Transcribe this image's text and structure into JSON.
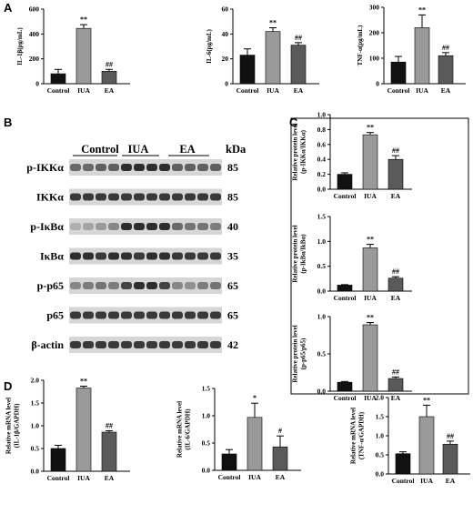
{
  "panels": {
    "A": "A",
    "B": "B",
    "C": "C",
    "D": "D"
  },
  "blot": {
    "groups": [
      "Control",
      "IUA",
      "EA"
    ],
    "kda_header": "kDa",
    "rows": [
      {
        "label": "p-IKKα",
        "kda": "85"
      },
      {
        "label": "IKKα",
        "kda": "85"
      },
      {
        "label": "p-IκBα",
        "kda": "40"
      },
      {
        "label": "IκBα",
        "kda": "35"
      },
      {
        "label": "p-p65",
        "kda": "65"
      },
      {
        "label": "p65",
        "kda": "65"
      },
      {
        "label": "β-actin",
        "kda": "42"
      }
    ]
  },
  "chart_data": [
    {
      "id": "A1",
      "type": "bar",
      "categories": [
        "Control",
        "IUA",
        "EA"
      ],
      "values": [
        80,
        445,
        100
      ],
      "errors": [
        35,
        30,
        15
      ],
      "ylabel": "IL-1β(pg/mL)",
      "ylim": [
        0,
        600
      ],
      "yticks": [
        0,
        200,
        400,
        600
      ],
      "annotations": [
        "",
        "**",
        "##"
      ],
      "colors": [
        "#111111",
        "#9a9a9a",
        "#5a5a5a"
      ]
    },
    {
      "id": "A2",
      "type": "bar",
      "categories": [
        "Control",
        "IUA",
        "EA"
      ],
      "values": [
        23,
        42,
        31
      ],
      "errors": [
        5,
        3,
        2
      ],
      "ylabel": "IL-6(pg/mL)",
      "ylim": [
        0,
        60
      ],
      "yticks": [
        0,
        20,
        40,
        60
      ],
      "annotations": [
        "",
        "**",
        "##"
      ],
      "colors": [
        "#111111",
        "#9a9a9a",
        "#5a5a5a"
      ]
    },
    {
      "id": "A3",
      "type": "bar",
      "categories": [
        "Control",
        "IUA",
        "EA"
      ],
      "values": [
        85,
        220,
        110
      ],
      "errors": [
        22,
        50,
        12
      ],
      "ylabel": "TNF-α(pg/mL)",
      "ylim": [
        0,
        300
      ],
      "yticks": [
        0,
        100,
        200,
        300
      ],
      "annotations": [
        "",
        "**",
        "##"
      ],
      "colors": [
        "#111111",
        "#9a9a9a",
        "#5a5a5a"
      ]
    },
    {
      "id": "C1",
      "type": "bar",
      "categories": [
        "Control",
        "IUA",
        "EA"
      ],
      "values": [
        0.2,
        0.73,
        0.4
      ],
      "errors": [
        0.02,
        0.03,
        0.05
      ],
      "ylabel": "Relative protein level|(p-IKKα/IKKα)",
      "ylim": [
        0,
        1.0
      ],
      "yticks": [
        "0.0",
        "0.2",
        "0.4",
        "0.6",
        "0.8",
        "1.0"
      ],
      "annotations": [
        "",
        "**",
        "##"
      ],
      "colors": [
        "#111111",
        "#9a9a9a",
        "#5a5a5a"
      ]
    },
    {
      "id": "C2",
      "type": "bar",
      "categories": [
        "Control",
        "IUA",
        "EA"
      ],
      "values": [
        0.12,
        0.87,
        0.26
      ],
      "errors": [
        0.01,
        0.07,
        0.03
      ],
      "ylabel": "Relative protein level|(p-IkBα/IkBα)",
      "ylim": [
        0,
        1.5
      ],
      "yticks": [
        "0.0",
        "0.5",
        "1.0",
        "1.5"
      ],
      "annotations": [
        "",
        "**",
        "##"
      ],
      "colors": [
        "#111111",
        "#9a9a9a",
        "#5a5a5a"
      ]
    },
    {
      "id": "C3",
      "type": "bar",
      "categories": [
        "Control",
        "IUA",
        "EA"
      ],
      "values": [
        0.12,
        0.89,
        0.17
      ],
      "errors": [
        0.01,
        0.03,
        0.02
      ],
      "ylabel": "Relative protein level|(p-p65/p65)",
      "ylim": [
        0,
        1.0
      ],
      "yticks": [
        "0.0",
        "0.5",
        "1.0"
      ],
      "annotations": [
        "",
        "**",
        "##"
      ],
      "colors": [
        "#111111",
        "#9a9a9a",
        "#5a5a5a"
      ]
    },
    {
      "id": "D1",
      "type": "bar",
      "categories": [
        "Control",
        "IUA",
        "EA"
      ],
      "values": [
        0.5,
        1.83,
        0.86
      ],
      "errors": [
        0.07,
        0.04,
        0.03
      ],
      "ylabel": "Relative mRNA level|(IL-1β/GAPDH)",
      "ylim": [
        0,
        2.0
      ],
      "yticks": [
        "0.0",
        "0.5",
        "1.0",
        "1.5",
        "2.0"
      ],
      "annotations": [
        "",
        "**",
        "##"
      ],
      "colors": [
        "#111111",
        "#9a9a9a",
        "#5a5a5a"
      ]
    },
    {
      "id": "D2",
      "type": "bar",
      "categories": [
        "Control",
        "IUA",
        "EA"
      ],
      "values": [
        0.3,
        0.97,
        0.43
      ],
      "errors": [
        0.08,
        0.26,
        0.2
      ],
      "ylabel": "Relative mRNA level|(IL-6/GAPDH)",
      "ylim": [
        0,
        1.5
      ],
      "yticks": [
        "0.0",
        "0.5",
        "1.0",
        "1.5"
      ],
      "annotations": [
        "",
        "*",
        "#"
      ],
      "colors": [
        "#111111",
        "#9a9a9a",
        "#5a5a5a"
      ]
    },
    {
      "id": "D3",
      "type": "bar",
      "categories": [
        "Control",
        "IUA",
        "EA"
      ],
      "values": [
        0.53,
        1.5,
        0.78
      ],
      "errors": [
        0.05,
        0.3,
        0.08
      ],
      "ylabel": "Relative mRNA level|(TNF-α/GAPDH)",
      "ylim": [
        0,
        2.0
      ],
      "yticks": [
        "0.0",
        "0.5",
        "1.0",
        "1.5",
        "2.0"
      ],
      "annotations": [
        "",
        "**",
        "##"
      ],
      "colors": [
        "#111111",
        "#9a9a9a",
        "#5a5a5a"
      ]
    }
  ]
}
